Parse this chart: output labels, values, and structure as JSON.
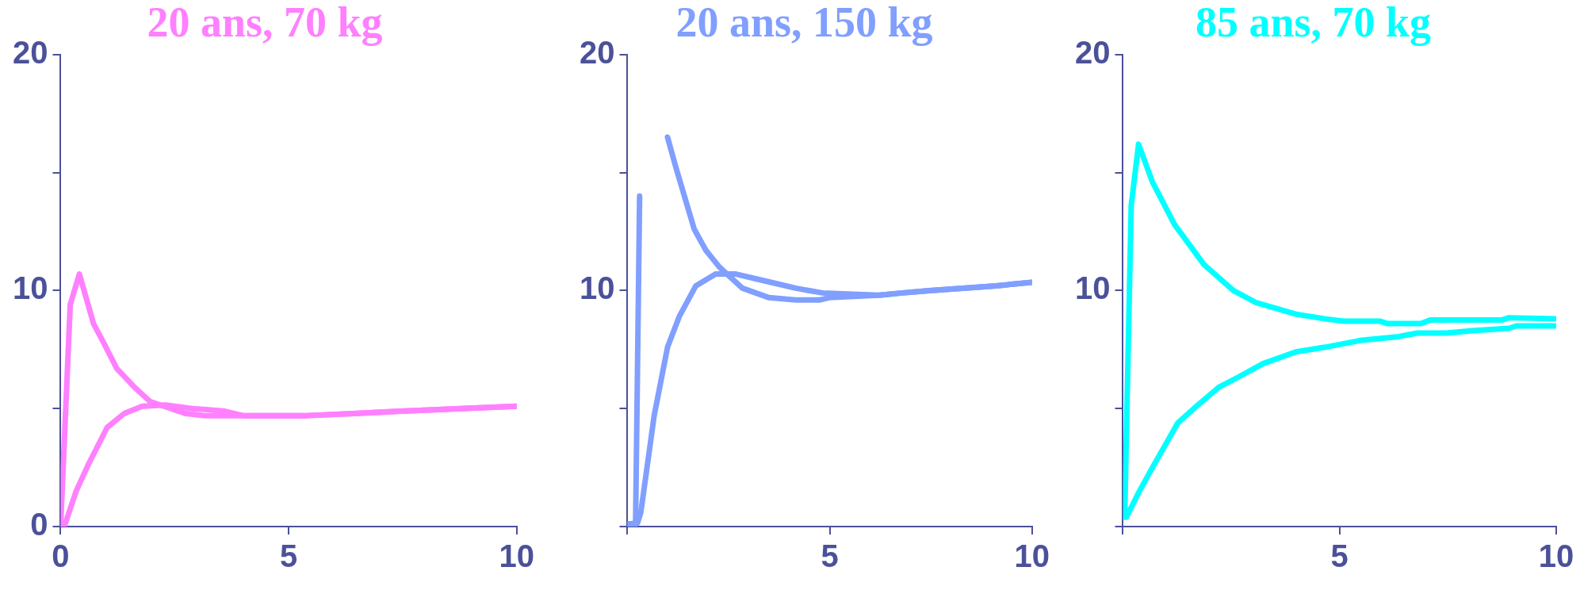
{
  "chart_data": [
    {
      "type": "line",
      "title": "20 ans, 70 kg",
      "xlim": [
        0,
        10
      ],
      "xticks": [
        0,
        5,
        10
      ],
      "ylim": [
        0,
        20
      ],
      "yticks": [
        0,
        {
          "value": 5,
          "label": null
        },
        10,
        {
          "value": 15,
          "label": null
        },
        20
      ],
      "grid": false,
      "marker": "none",
      "line_style": "solid",
      "series": [
        {
          "color": "#ff80ff",
          "x": [
            0,
            0.21,
            0.41,
            0.72,
            0.94,
            1.23,
            1.62,
            1.96,
            2.72,
            3.15,
            4,
            5.4,
            6.5,
            7.57,
            8.77,
            10
          ],
          "values": [
            0,
            9.4,
            10.7,
            8.6,
            7.8,
            6.7,
            5.9,
            5.3,
            4.8,
            4.7,
            4.7,
            4.7,
            4.8,
            4.9,
            5,
            5.1
          ]
        },
        {
          "color": "#ff80ff",
          "x": [
            0.08,
            0.34,
            0.6,
            1.02,
            1.4,
            1.79,
            2.3,
            2.89,
            3.57,
            4,
            5.4,
            6.5,
            7.57,
            8.77,
            10
          ],
          "values": [
            0,
            1.5,
            2.6,
            4.2,
            4.8,
            5.1,
            5.15,
            5,
            4.9,
            4.7,
            4.7,
            4.8,
            4.9,
            5,
            5.1
          ]
        }
      ]
    },
    {
      "type": "line",
      "title": "20 ans, 150 kg",
      "xlim": [
        0,
        10
      ],
      "xticks": [
        {
          "value": 0,
          "label": null
        },
        5,
        10
      ],
      "ylim": [
        0,
        20
      ],
      "yticks": [
        {
          "value": 0,
          "label": null
        },
        {
          "value": 5,
          "label": null
        },
        10,
        {
          "value": 15,
          "label": null
        },
        20
      ],
      "grid": false,
      "marker": "none",
      "line_style": "solid",
      "series": [
        {
          "color": "#809fff",
          "x": [
            0,
            0.2,
            0.3,
            0.45,
            0.62,
            0.99,
            1.2,
            1.65,
            1.94,
            2.27,
            2.84,
            3.5,
            4.16,
            4.74,
            4.99,
            6.22,
            6.8,
            7.46,
            8.29,
            9.11,
            10
          ],
          "values": [
            0.1,
            0.1,
            14,
            null,
            null,
            16.5,
            15.2,
            12.6,
            11.7,
            11,
            10.1,
            9.7,
            9.6,
            9.6,
            9.7,
            9.8,
            9.9,
            10,
            10.1,
            10.2,
            10.35
          ]
        },
        {
          "color": "#809fff",
          "x": [
            0,
            0.25,
            0.33,
            0.66,
            0.99,
            1.28,
            1.69,
            2.18,
            2.68,
            3.17,
            3.67,
            4.16,
            4.82,
            6.22,
            6.8,
            7.46,
            8.29,
            9.11,
            10
          ],
          "values": [
            0.1,
            0.15,
            0.6,
            4.7,
            7.6,
            8.9,
            10.2,
            10.7,
            10.7,
            10.5,
            10.3,
            10.1,
            9.9,
            9.8,
            9.9,
            10,
            10.1,
            10.2,
            10.35
          ]
        }
      ]
    },
    {
      "type": "line",
      "title": "85 ans, 70 kg",
      "xlim": [
        0,
        10
      ],
      "xticks": [
        {
          "value": 0,
          "label": null
        },
        5,
        10
      ],
      "ylim": [
        0,
        20
      ],
      "yticks": [
        {
          "value": 0,
          "label": null
        },
        {
          "value": 5,
          "label": null
        },
        10,
        {
          "value": 15,
          "label": null
        },
        20
      ],
      "grid": false,
      "marker": "none",
      "line_style": "solid",
      "series": [
        {
          "color": "#00ffff",
          "x": [
            0.04,
            0.19,
            0.36,
            0.68,
            1.19,
            1.87,
            2.55,
            3.06,
            3.99,
            4.67,
            5.09,
            5.94,
            6.11,
            6.88,
            7.09,
            8.74,
            8.91,
            10
          ],
          "values": [
            0.4,
            13.6,
            16.2,
            14.6,
            12.8,
            11.1,
            10,
            9.5,
            9,
            8.8,
            8.7,
            8.7,
            8.6,
            8.6,
            8.75,
            8.75,
            8.85,
            8.8
          ]
        },
        {
          "color": "#00ffff",
          "x": [
            0.08,
            0.38,
            0.68,
            1.27,
            1.7,
            2.21,
            2.63,
            3.23,
            3.99,
            4.67,
            5.52,
            6.37,
            6.79,
            7.47,
            8.06,
            8.91,
            9.08,
            10
          ],
          "values": [
            0.4,
            1.5,
            2.5,
            4.4,
            5.1,
            5.9,
            6.3,
            6.9,
            7.4,
            7.6,
            7.9,
            8.05,
            8.2,
            8.2,
            8.3,
            8.4,
            8.5,
            8.5
          ]
        }
      ]
    }
  ]
}
